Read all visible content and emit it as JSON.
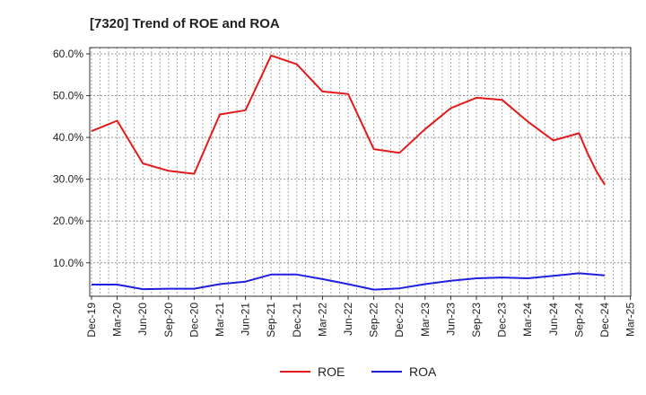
{
  "chart_data": {
    "type": "line",
    "title": "[7320]  Trend of ROE and ROA",
    "xlabel": "",
    "ylabel": "",
    "x_ticks": [
      "Dec-19",
      "Mar-20",
      "Jun-20",
      "Sep-20",
      "Dec-20",
      "Mar-21",
      "Jun-21",
      "Sep-21",
      "Dec-21",
      "Mar-22",
      "Jun-22",
      "Sep-22",
      "Dec-22",
      "Mar-23",
      "Jun-23",
      "Sep-23",
      "Dec-23",
      "Mar-24",
      "Jun-24",
      "Sep-24",
      "Dec-24",
      "Mar-25"
    ],
    "y_ticks": [
      "10.0%",
      "20.0%",
      "30.0%",
      "40.0%",
      "50.0%",
      "60.0%"
    ],
    "ylim": [
      2,
      61.5
    ],
    "grid": true,
    "legend_position": "bottom",
    "series": [
      {
        "name": "ROE",
        "color": "#e31a1c",
        "x": [
          "Dec-19",
          "Mar-20",
          "Jun-20",
          "Sep-20",
          "Dec-20",
          "Mar-21",
          "Jun-21",
          "Sep-21",
          "Dec-21",
          "Mar-22",
          "Jun-22",
          "Sep-22",
          "Dec-22",
          "Mar-23",
          "Jun-23",
          "Sep-23",
          "Dec-23",
          "Mar-24",
          "Jun-24",
          "Sep-24",
          "Oct-24",
          "Nov-24",
          "Dec-24"
        ],
        "values": [
          41.5,
          44.0,
          33.8,
          32.0,
          31.3,
          45.5,
          46.5,
          59.6,
          57.5,
          51.0,
          50.4,
          37.2,
          36.3,
          42.0,
          47.0,
          49.5,
          49.0,
          43.8,
          39.3,
          41.0,
          36.2,
          32.0,
          28.7
        ]
      },
      {
        "name": "ROA",
        "color": "#1f1fe0",
        "x": [
          "Dec-19",
          "Mar-20",
          "Jun-20",
          "Sep-20",
          "Dec-20",
          "Mar-21",
          "Jun-21",
          "Sep-21",
          "Dec-21",
          "Mar-22",
          "Jun-22",
          "Sep-22",
          "Dec-22",
          "Mar-23",
          "Jun-23",
          "Sep-23",
          "Dec-23",
          "Mar-24",
          "Jun-24",
          "Sep-24",
          "Dec-24"
        ],
        "values": [
          4.8,
          4.8,
          3.7,
          3.8,
          3.8,
          4.9,
          5.5,
          7.2,
          7.2,
          6.1,
          4.9,
          3.6,
          3.9,
          4.9,
          5.7,
          6.3,
          6.5,
          6.3,
          6.9,
          7.5,
          7.0
        ]
      }
    ]
  }
}
